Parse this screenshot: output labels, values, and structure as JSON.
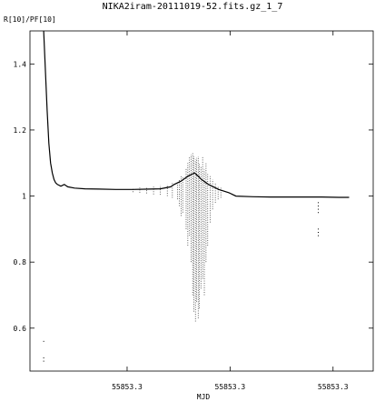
{
  "chart_data": {
    "type": "scatter",
    "title": "NIKA2iram-20111019-52.fits.gz_1_7",
    "xlabel": "MJD",
    "ylabel": "R[10]/PF[10]",
    "xlim": [
      0,
      1
    ],
    "ylim": [
      0.47,
      1.5
    ],
    "x_ticks": [
      {
        "value": 0.283,
        "label": "55853.3"
      },
      {
        "value": 0.583,
        "label": "55853.3"
      },
      {
        "value": 0.883,
        "label": "55853.3"
      }
    ],
    "y_ticks": [
      {
        "value": 0.6,
        "label": "0.6"
      },
      {
        "value": 0.8,
        "label": "0.8"
      },
      {
        "value": 1.0,
        "label": "1"
      },
      {
        "value": 1.2,
        "label": "1.2"
      },
      {
        "value": 1.4,
        "label": "1.4"
      }
    ],
    "grid": false,
    "legend": "none",
    "color": "#000000",
    "series": [
      {
        "baseline": [
          [
            0.04,
            1.5
          ],
          [
            0.045,
            1.38
          ],
          [
            0.05,
            1.26
          ],
          [
            0.055,
            1.16
          ],
          [
            0.06,
            1.1
          ],
          [
            0.065,
            1.07
          ],
          [
            0.07,
            1.05
          ],
          [
            0.075,
            1.04
          ],
          [
            0.08,
            1.035
          ],
          [
            0.09,
            1.03
          ],
          [
            0.1,
            1.035
          ],
          [
            0.11,
            1.028
          ],
          [
            0.13,
            1.024
          ],
          [
            0.16,
            1.022
          ],
          [
            0.2,
            1.021
          ],
          [
            0.25,
            1.02
          ],
          [
            0.3,
            1.02
          ],
          [
            0.35,
            1.021
          ],
          [
            0.38,
            1.022
          ],
          [
            0.41,
            1.028
          ],
          [
            0.42,
            1.035
          ],
          [
            0.44,
            1.045
          ],
          [
            0.46,
            1.06
          ],
          [
            0.48,
            1.07
          ],
          [
            0.5,
            1.05
          ],
          [
            0.52,
            1.035
          ],
          [
            0.55,
            1.02
          ],
          [
            0.58,
            1.01
          ],
          [
            0.6,
            1.0
          ],
          [
            0.65,
            0.998
          ],
          [
            0.7,
            0.997
          ],
          [
            0.75,
            0.997
          ],
          [
            0.8,
            0.997
          ],
          [
            0.85,
            0.997
          ],
          [
            0.9,
            0.996
          ],
          [
            0.93,
            0.996
          ]
        ],
        "spikes": [
          [
            0.43,
            0.99,
            1.045
          ],
          [
            0.435,
            0.97,
            1.05
          ],
          [
            0.44,
            0.94,
            1.06
          ],
          [
            0.445,
            0.95,
            1.06
          ],
          [
            0.455,
            0.9,
            1.085
          ],
          [
            0.46,
            0.85,
            1.1
          ],
          [
            0.465,
            0.88,
            1.12
          ],
          [
            0.47,
            0.8,
            1.125
          ],
          [
            0.474,
            0.7,
            1.13
          ],
          [
            0.478,
            0.65,
            1.12
          ],
          [
            0.482,
            0.62,
            1.11
          ],
          [
            0.486,
            0.68,
            1.115
          ],
          [
            0.49,
            0.63,
            1.12
          ],
          [
            0.494,
            0.66,
            1.1
          ],
          [
            0.498,
            0.72,
            1.09
          ],
          [
            0.503,
            0.75,
            1.12
          ],
          [
            0.508,
            0.7,
            1.08
          ],
          [
            0.513,
            0.8,
            1.1
          ],
          [
            0.518,
            0.85,
            1.07
          ],
          [
            0.525,
            0.92,
            1.06
          ],
          [
            0.532,
            0.96,
            1.05
          ],
          [
            0.54,
            0.98,
            1.04
          ],
          [
            0.548,
            0.99,
            1.03
          ],
          [
            0.556,
            0.995,
            1.025
          ],
          [
            0.3,
            1.012,
            1.024
          ],
          [
            0.32,
            1.01,
            1.026
          ],
          [
            0.34,
            1.008,
            1.028
          ],
          [
            0.36,
            1.005,
            1.03
          ],
          [
            0.38,
            1.004,
            1.032
          ],
          [
            0.4,
            1.0,
            1.035
          ],
          [
            0.415,
            0.995,
            1.04
          ]
        ],
        "outliers": [
          [
            0.84,
            0.88
          ],
          [
            0.84,
            0.89
          ],
          [
            0.84,
            0.9
          ],
          [
            0.84,
            0.95
          ],
          [
            0.84,
            0.96
          ],
          [
            0.84,
            0.97
          ],
          [
            0.84,
            0.98
          ],
          [
            0.04,
            0.56
          ],
          [
            0.04,
            0.5
          ],
          [
            0.04,
            0.51
          ]
        ]
      }
    ]
  }
}
